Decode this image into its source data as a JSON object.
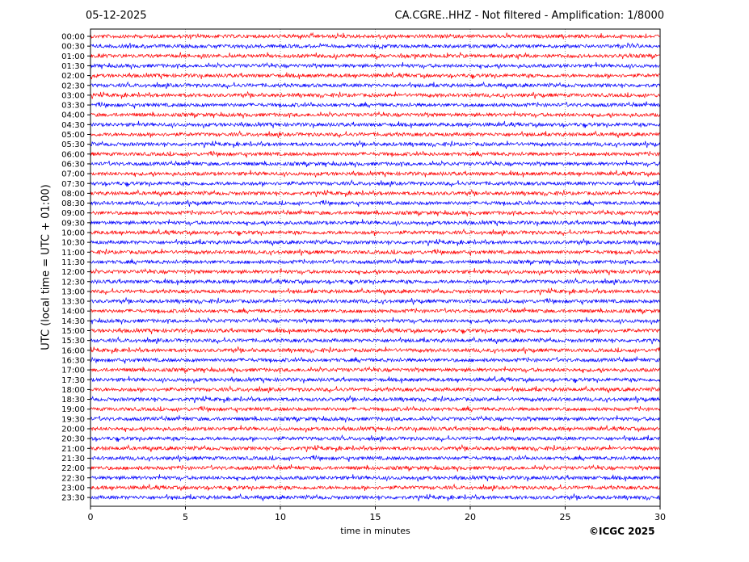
{
  "header": {
    "date": "05-12-2025",
    "title": "CA.CGRE..HHZ - Not filtered - Amplification: 1/8000"
  },
  "footer": {
    "copyright": "©ICGC 2025"
  },
  "colors": {
    "trace_a": "#ff0000",
    "trace_b": "#0000ff",
    "grid": "#555555"
  },
  "chart_data": {
    "type": "line",
    "title": "CA.CGRE..HHZ - Not filtered - Amplification: 1/8000",
    "xlabel": "time in minutes",
    "ylabel": "UTC (local time = UTC + 01:00)",
    "xlim": [
      0,
      30
    ],
    "xticks": [
      0,
      5,
      10,
      15,
      20,
      25,
      30
    ],
    "grid": "vertical dotted lines at x ticks",
    "series_color_cycle": [
      "#ff0000",
      "#0000ff"
    ],
    "series": [
      {
        "name": "00:00"
      },
      {
        "name": "00:30"
      },
      {
        "name": "01:00"
      },
      {
        "name": "01:30"
      },
      {
        "name": "02:00"
      },
      {
        "name": "02:30"
      },
      {
        "name": "03:00"
      },
      {
        "name": "03:30"
      },
      {
        "name": "04:00"
      },
      {
        "name": "04:30"
      },
      {
        "name": "05:00"
      },
      {
        "name": "05:30"
      },
      {
        "name": "06:00"
      },
      {
        "name": "06:30"
      },
      {
        "name": "07:00"
      },
      {
        "name": "07:30"
      },
      {
        "name": "08:00"
      },
      {
        "name": "08:30"
      },
      {
        "name": "09:00"
      },
      {
        "name": "09:30"
      },
      {
        "name": "10:00"
      },
      {
        "name": "10:30"
      },
      {
        "name": "11:00"
      },
      {
        "name": "11:30"
      },
      {
        "name": "12:00"
      },
      {
        "name": "12:30"
      },
      {
        "name": "13:00"
      },
      {
        "name": "13:30"
      },
      {
        "name": "14:00"
      },
      {
        "name": "14:30"
      },
      {
        "name": "15:00"
      },
      {
        "name": "15:30"
      },
      {
        "name": "16:00"
      },
      {
        "name": "16:30"
      },
      {
        "name": "17:00"
      },
      {
        "name": "17:30"
      },
      {
        "name": "18:00"
      },
      {
        "name": "18:30"
      },
      {
        "name": "19:00"
      },
      {
        "name": "19:30"
      },
      {
        "name": "20:00"
      },
      {
        "name": "20:30"
      },
      {
        "name": "21:00"
      },
      {
        "name": "21:30"
      },
      {
        "name": "22:00"
      },
      {
        "name": "22:30"
      },
      {
        "name": "23:00"
      },
      {
        "name": "23:30"
      }
    ]
  }
}
